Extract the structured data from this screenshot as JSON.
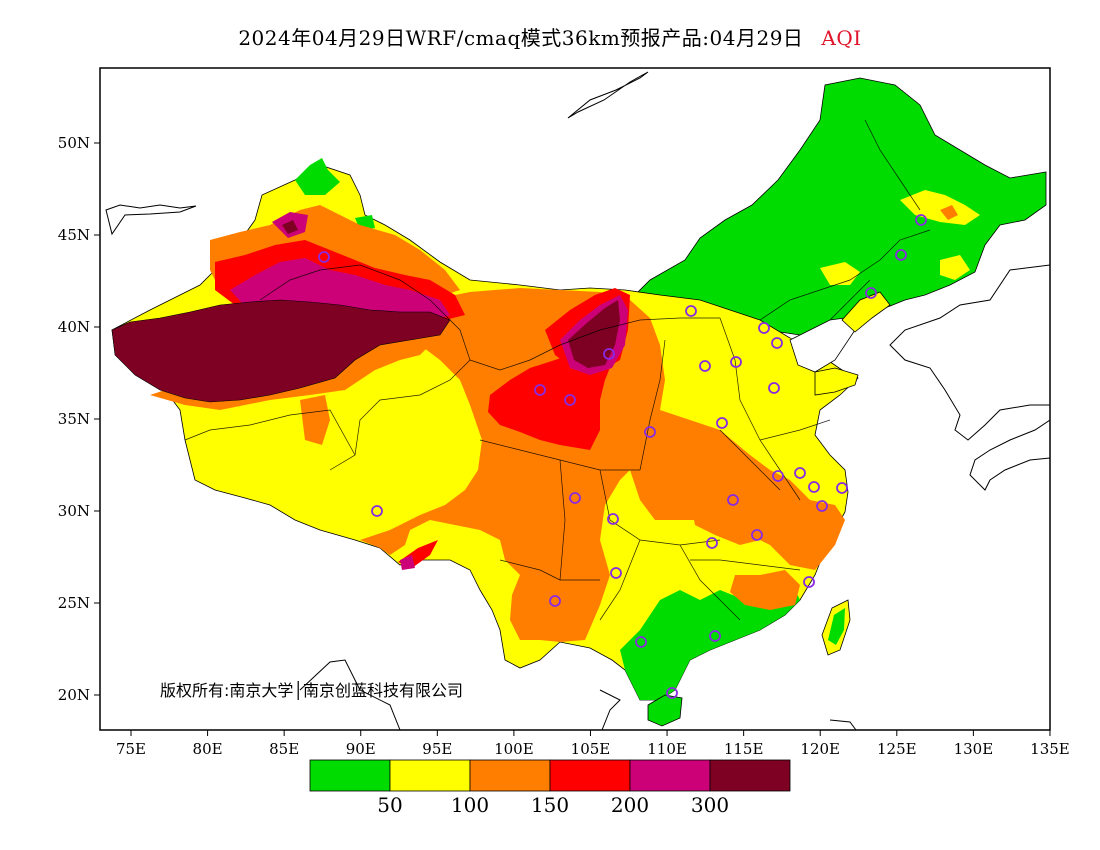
{
  "header": {
    "title": "2024年04月29日WRF/cmaq模式36km预报产品:04月29日",
    "variable": "AQI",
    "variable_color": "#e0142a"
  },
  "axes": {
    "lat_ticks": [
      "50N",
      "45N",
      "40N",
      "35N",
      "30N",
      "25N",
      "20N"
    ],
    "lon_ticks": [
      "75E",
      "80E",
      "85E",
      "90E",
      "95E",
      "100E",
      "105E",
      "110E",
      "115E",
      "120E",
      "125E",
      "130E",
      "135E"
    ]
  },
  "legend": {
    "colors": [
      "#00dc00",
      "#ffff00",
      "#ff7e00",
      "#ff0000",
      "#cc0077",
      "#7e0023"
    ],
    "labels": [
      "50",
      "100",
      "150",
      "200",
      "300"
    ]
  },
  "copyright": "版权所有:南京大学│南京创蓝科技有限公司",
  "station_color": "#8a2be2"
}
